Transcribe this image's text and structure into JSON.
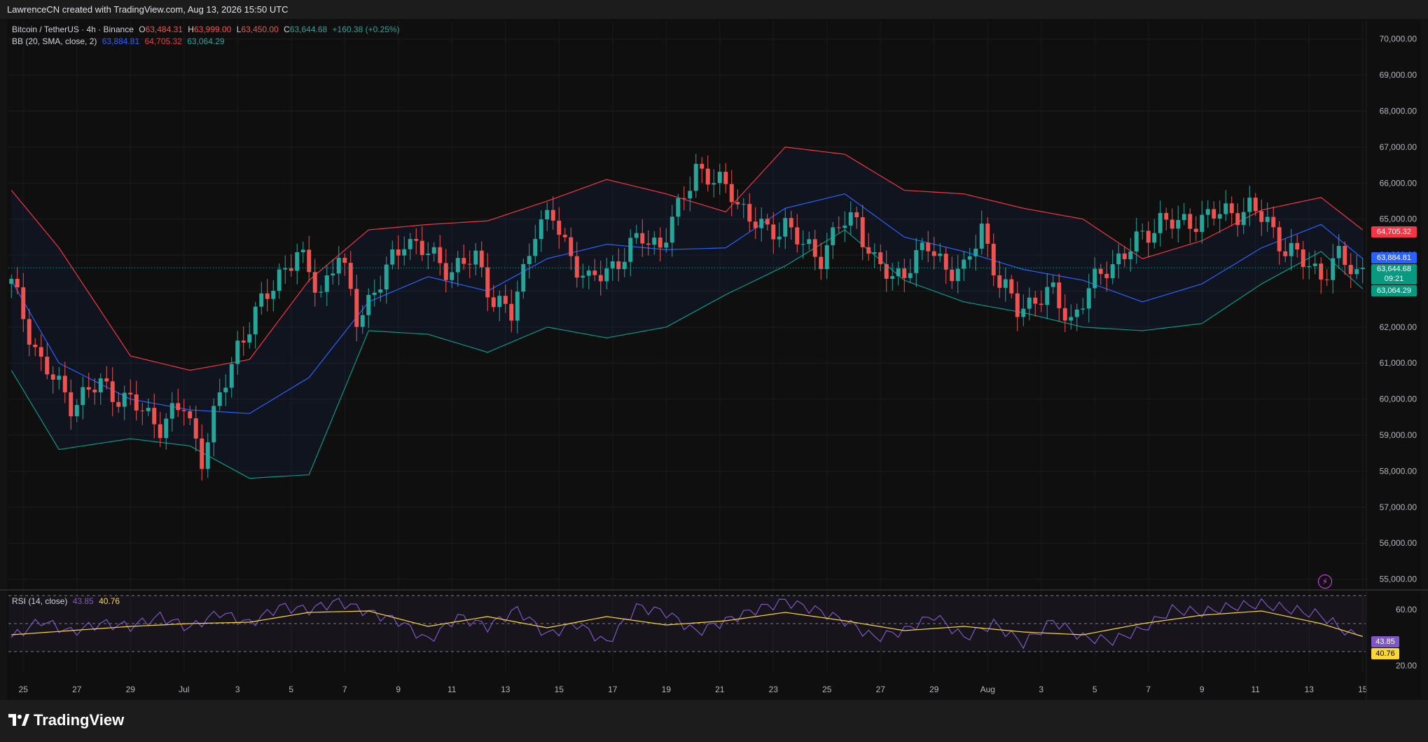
{
  "header": {
    "caption": "LawrenceCN created with TradingView.com, Aug 13, 2026 15:50 UTC"
  },
  "symbol": {
    "title": "Bitcoin / TetherUS · 4h · Binance",
    "open_label": "O",
    "open": "63,484.31",
    "high_label": "H",
    "high": "63,999.00",
    "low_label": "L",
    "low": "63,450.00",
    "close_label": "C",
    "close": "63,644.68",
    "change": "+160.38 (+0.25%)"
  },
  "bb_legend": {
    "title": "BB (20, SMA, close, 2)",
    "basis": "63,884.81",
    "upper": "64,705.32",
    "lower": "63,064.29"
  },
  "rsi_legend": {
    "title": "RSI (14, close)",
    "rsi": "43.85",
    "ma": "40.76"
  },
  "price_badges": {
    "upper": "64,705.32",
    "basis": "63,884.81",
    "close": "63,644.68",
    "countdown": "09:21",
    "lower": "63,064.29"
  },
  "rsi_badges": {
    "rsi": "43.85",
    "ma": "40.76"
  },
  "brand": {
    "name": "TradingView"
  },
  "colors": {
    "up": "#26a69a",
    "down": "#ef5350",
    "basis": "#2962ff",
    "upper": "#f23645",
    "lower": "#089981",
    "rsi": "#7e57c2",
    "rsi_ma": "#fdd835"
  },
  "chart_data": {
    "type": "candlestick",
    "y_ticks": [
      "70,000.00",
      "69,000.00",
      "68,000.00",
      "67,000.00",
      "66,000.00",
      "65,000.00",
      "64,000.00",
      "63,000.00",
      "62,000.00",
      "61,000.00",
      "60,000.00",
      "59,000.00",
      "58,000.00",
      "57,000.00",
      "56,000.00",
      "55,000.00"
    ],
    "ylim": [
      54700,
      70500
    ],
    "x_ticks": [
      "25",
      "27",
      "29",
      "Jul",
      "3",
      "5",
      "7",
      "9",
      "11",
      "13",
      "15",
      "17",
      "19",
      "21",
      "23",
      "25",
      "27",
      "29",
      "Aug",
      "3",
      "5",
      "7",
      "9",
      "11",
      "13",
      "15"
    ],
    "bb_anchor_points": {
      "x": [
        0,
        8,
        20,
        30,
        40,
        50,
        60,
        70,
        80,
        90,
        100,
        110,
        120,
        130,
        140,
        150,
        160,
        170,
        180,
        190,
        200,
        210,
        220,
        227
      ],
      "basis": [
        63300,
        61000,
        60000,
        59700,
        59600,
        60600,
        62700,
        63400,
        63000,
        63900,
        64300,
        64150,
        64200,
        65300,
        65700,
        64500,
        64100,
        63600,
        63300,
        62700,
        63200,
        64200,
        64850,
        63900
      ],
      "upper": [
        65800,
        64200,
        61200,
        60800,
        61100,
        63300,
        64700,
        64850,
        64950,
        65500,
        66100,
        65700,
        65200,
        67000,
        66800,
        65800,
        65700,
        65300,
        65000,
        63900,
        64400,
        65250,
        65600,
        64700
      ],
      "lower": [
        60800,
        58600,
        58900,
        58700,
        57800,
        57900,
        61900,
        61800,
        61300,
        62000,
        61700,
        62000,
        62900,
        63700,
        64700,
        63300,
        62700,
        62400,
        62000,
        61900,
        62100,
        63200,
        64100,
        63060
      ]
    },
    "close_anchor_points": {
      "x": [
        0,
        5,
        10,
        15,
        20,
        25,
        29,
        32,
        35,
        38,
        42,
        45,
        48,
        52,
        55,
        58,
        62,
        66,
        70,
        74,
        78,
        81,
        84,
        88,
        91,
        94,
        97,
        100,
        103,
        106,
        109,
        112,
        115,
        118,
        121,
        124,
        127,
        130,
        133,
        136,
        139,
        142,
        145,
        148,
        151,
        154,
        157,
        160,
        163,
        166,
        169,
        172,
        175,
        178,
        181,
        184,
        187,
        190,
        193,
        196,
        199,
        202,
        205,
        208,
        211,
        214,
        217,
        220,
        223,
        226,
        227
      ],
      "values": [
        63200,
        61000,
        59900,
        60400,
        59900,
        59300,
        59800,
        58400,
        60000,
        61500,
        62600,
        63500,
        64000,
        63000,
        64000,
        62300,
        63200,
        64500,
        64000,
        63600,
        63900,
        62800,
        62300,
        64800,
        65000,
        64000,
        63200,
        63600,
        64000,
        64500,
        64300,
        65200,
        66500,
        66000,
        65800,
        65000,
        64600,
        64900,
        64200,
        64000,
        64800,
        65000,
        63800,
        63300,
        63800,
        64200,
        63700,
        63500,
        64800,
        63200,
        62500,
        62800,
        62900,
        62200,
        63000,
        63700,
        64000,
        64500,
        65000,
        64800,
        65000,
        65100,
        65200,
        65300,
        64900,
        64200,
        63800,
        63500,
        63900,
        63500,
        63645
      ]
    },
    "rsi": {
      "ylim": [
        15,
        70
      ],
      "y_ticks": [
        "60.00",
        "20.00"
      ],
      "levels": [
        70,
        50,
        30
      ],
      "rsi_anchor_points": {
        "x": [
          0,
          5,
          10,
          15,
          20,
          25,
          30,
          35,
          40,
          45,
          50,
          55,
          60,
          65,
          70,
          75,
          80,
          85,
          90,
          95,
          100,
          105,
          110,
          115,
          120,
          125,
          130,
          135,
          140,
          145,
          150,
          155,
          160,
          165,
          170,
          175,
          180,
          185,
          190,
          195,
          200,
          205,
          210,
          215,
          220,
          225,
          227
        ],
        "values": [
          40,
          52,
          44,
          50,
          48,
          55,
          47,
          58,
          50,
          62,
          60,
          66,
          58,
          52,
          38,
          55,
          48,
          60,
          42,
          50,
          36,
          62,
          58,
          44,
          52,
          60,
          66,
          60,
          52,
          40,
          45,
          56,
          40,
          50,
          36,
          52,
          40,
          38,
          46,
          60,
          58,
          62,
          64,
          60,
          56,
          42,
          43.85
        ]
      },
      "ma_anchor_points": {
        "x": [
          0,
          10,
          20,
          30,
          40,
          50,
          60,
          70,
          80,
          90,
          100,
          110,
          120,
          130,
          140,
          150,
          160,
          170,
          180,
          190,
          200,
          210,
          220,
          227
        ],
        "values": [
          42,
          45,
          48,
          50,
          51,
          58,
          59,
          48,
          55,
          47,
          55,
          49,
          52,
          58,
          52,
          45,
          48,
          44,
          42,
          50,
          56,
          59,
          50,
          40.76
        ]
      }
    }
  }
}
